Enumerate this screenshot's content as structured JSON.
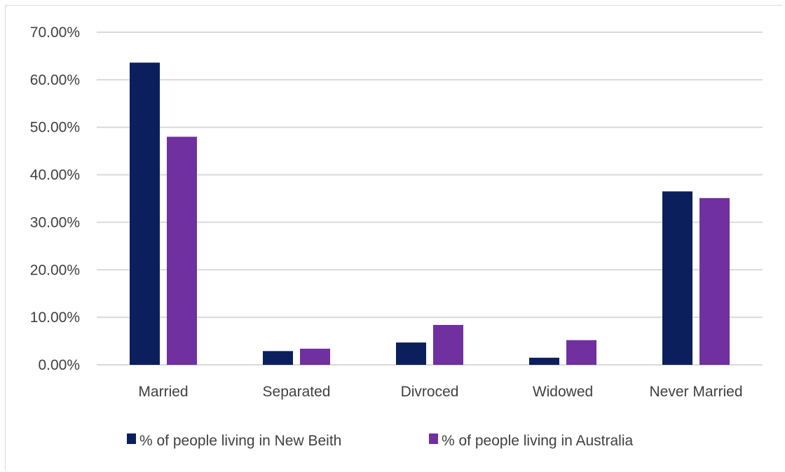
{
  "chart_data": {
    "type": "bar",
    "categories": [
      "Married",
      "Separated",
      "Divroced",
      "Widowed",
      "Never Married"
    ],
    "series": [
      {
        "name": "% of people living in New Beith",
        "color": "#0b1f5c",
        "values": [
          63.6,
          2.9,
          4.7,
          1.5,
          36.5
        ]
      },
      {
        "name": "% of people living in Australia",
        "color": "#7030a0",
        "values": [
          48.0,
          3.4,
          8.4,
          5.2,
          35.1
        ]
      }
    ],
    "ylim": [
      0,
      70
    ],
    "yticks": [
      0,
      10,
      20,
      30,
      40,
      50,
      60,
      70
    ],
    "ytick_labels": [
      "0.00%",
      "10.00%",
      "20.00%",
      "30.00%",
      "40.00%",
      "50.00%",
      "60.00%",
      "70.00%"
    ],
    "grid": true,
    "legend_position": "bottom",
    "title": "",
    "xlabel": "",
    "ylabel": ""
  }
}
